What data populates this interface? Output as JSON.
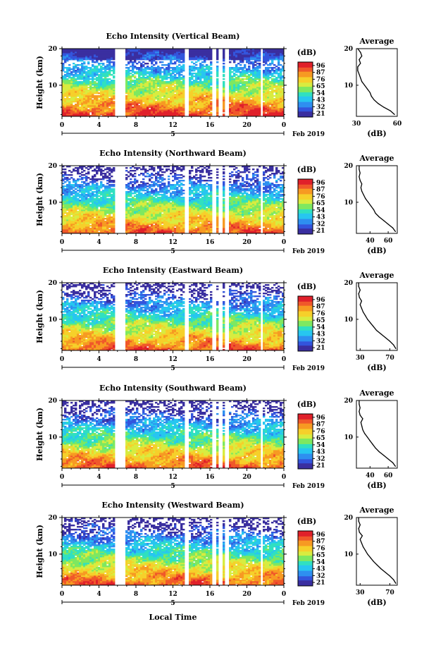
{
  "figure": {
    "x_axis_label": "Local Time",
    "date_label": "Feb 2019",
    "day_label": "5",
    "time_ticks": [
      "0",
      "4",
      "8",
      "12",
      "16",
      "20",
      "0"
    ],
    "height_ticks": [
      "20",
      "10"
    ],
    "height_axis_label": "Height (km)",
    "colorbar_unit": "(dB)",
    "average_title": "Average",
    "average_xlabel": "(dB)",
    "colormap": [
      "#3a2fa0",
      "#3355dd",
      "#2e8ff0",
      "#27c6f0",
      "#30e0c0",
      "#7ee860",
      "#d8ec40",
      "#f6d02a",
      "#f79a22",
      "#f0582a",
      "#e0202a"
    ]
  },
  "chart_data": [
    {
      "type": "heatmap",
      "title": "Echo Intensity (Vertical Beam)",
      "xlabel": "Local Time",
      "ylabel": "Height (km)",
      "x_unit": "hour",
      "xlim": [
        0,
        24
      ],
      "ylim": [
        1.5,
        20
      ],
      "colorbar": {
        "label": "(dB)",
        "ticks": [
          "96",
          "87",
          "76",
          "65",
          "54",
          "43",
          "32",
          "21"
        ]
      },
      "data_gaps_hours": [
        [
          5.8,
          6.8
        ],
        [
          13.3,
          13.8
        ],
        [
          16.3,
          16.6
        ],
        [
          17.0,
          17.3
        ],
        [
          17.7,
          18.0
        ],
        [
          21.5,
          21.8
        ]
      ],
      "profile": {
        "title": "Average",
        "xlabel": "(dB)",
        "xticks": [
          "30",
          "60"
        ],
        "xlim": [
          30,
          60
        ],
        "yticks": [
          "20",
          "10"
        ],
        "ylim": [
          1.5,
          20
        ],
        "points": [
          [
            58,
            2
          ],
          [
            55,
            3
          ],
          [
            50,
            4
          ],
          [
            46,
            5
          ],
          [
            43,
            6
          ],
          [
            41,
            7
          ],
          [
            40,
            8
          ],
          [
            38,
            9
          ],
          [
            36,
            10
          ],
          [
            34,
            11
          ],
          [
            33,
            12
          ],
          [
            32,
            13
          ],
          [
            31,
            14
          ],
          [
            31,
            15
          ],
          [
            33,
            16
          ],
          [
            32,
            17
          ],
          [
            34,
            18
          ],
          [
            33,
            19
          ],
          [
            31,
            20
          ]
        ]
      }
    },
    {
      "type": "heatmap",
      "title": "Echo Intensity (Northward Beam)",
      "xlabel": "Local Time",
      "ylabel": "Height (km)",
      "x_unit": "hour",
      "xlim": [
        0,
        24
      ],
      "ylim": [
        1.5,
        20
      ],
      "colorbar": {
        "label": "(dB)",
        "ticks": [
          "96",
          "87",
          "76",
          "65",
          "54",
          "43",
          "32",
          "21"
        ]
      },
      "data_gaps_hours": [
        [
          5.8,
          6.8
        ],
        [
          13.3,
          13.8
        ],
        [
          16.3,
          16.6
        ],
        [
          17.0,
          17.3
        ],
        [
          17.7,
          18.0
        ],
        [
          21.5,
          21.8
        ]
      ],
      "profile": {
        "title": "Average",
        "xlabel": "(dB)",
        "xticks": [
          "40",
          "60"
        ],
        "xlim": [
          25,
          70
        ],
        "yticks": [
          "20",
          "10"
        ],
        "ylim": [
          1.5,
          20
        ],
        "points": [
          [
            68,
            2
          ],
          [
            65,
            3
          ],
          [
            60,
            4
          ],
          [
            55,
            5
          ],
          [
            50,
            6
          ],
          [
            46,
            7
          ],
          [
            44,
            8
          ],
          [
            41,
            9
          ],
          [
            38,
            10
          ],
          [
            35,
            11
          ],
          [
            33,
            12
          ],
          [
            31,
            13
          ],
          [
            30,
            14
          ],
          [
            31,
            15
          ],
          [
            29,
            16
          ],
          [
            28,
            17
          ],
          [
            29,
            18
          ],
          [
            28,
            19
          ],
          [
            28,
            20
          ]
        ]
      }
    },
    {
      "type": "heatmap",
      "title": "Echo Intensity (Eastward Beam)",
      "xlabel": "Local Time",
      "ylabel": "Height (km)",
      "x_unit": "hour",
      "xlim": [
        0,
        24
      ],
      "ylim": [
        1.5,
        20
      ],
      "colorbar": {
        "label": "(dB)",
        "ticks": [
          "96",
          "87",
          "76",
          "65",
          "54",
          "43",
          "32",
          "21"
        ]
      },
      "data_gaps_hours": [
        [
          5.8,
          6.8
        ],
        [
          13.3,
          13.8
        ],
        [
          16.3,
          16.6
        ],
        [
          17.0,
          17.3
        ],
        [
          17.7,
          18.0
        ],
        [
          21.5,
          21.8
        ]
      ],
      "profile": {
        "title": "Average",
        "xlabel": "(dB)",
        "xticks": [
          "30",
          "70"
        ],
        "xlim": [
          25,
          80
        ],
        "yticks": [
          "20",
          "10"
        ],
        "ylim": [
          1.5,
          20
        ],
        "points": [
          [
            78,
            2
          ],
          [
            75,
            3
          ],
          [
            70,
            4
          ],
          [
            64,
            5
          ],
          [
            58,
            6
          ],
          [
            52,
            7
          ],
          [
            48,
            8
          ],
          [
            44,
            9
          ],
          [
            40,
            10
          ],
          [
            37,
            11
          ],
          [
            34,
            12
          ],
          [
            32,
            13
          ],
          [
            30,
            14
          ],
          [
            32,
            15
          ],
          [
            29,
            16
          ],
          [
            28,
            17
          ],
          [
            30,
            18
          ],
          [
            28,
            19
          ],
          [
            28,
            20
          ]
        ]
      }
    },
    {
      "type": "heatmap",
      "title": "Echo Intensity (Southward Beam)",
      "xlabel": "Local Time",
      "ylabel": "Height (km)",
      "x_unit": "hour",
      "xlim": [
        0,
        24
      ],
      "ylim": [
        1.5,
        20
      ],
      "colorbar": {
        "label": "(dB)",
        "ticks": [
          "96",
          "87",
          "76",
          "65",
          "54",
          "43",
          "32",
          "21"
        ]
      },
      "data_gaps_hours": [
        [
          5.8,
          6.8
        ],
        [
          13.3,
          13.8
        ],
        [
          16.3,
          16.6
        ],
        [
          17.0,
          17.3
        ],
        [
          17.7,
          18.0
        ],
        [
          21.5,
          21.8
        ]
      ],
      "profile": {
        "title": "Average",
        "xlabel": "(dB)",
        "xticks": [
          "40",
          "60"
        ],
        "xlim": [
          25,
          70
        ],
        "yticks": [
          "20",
          "10"
        ],
        "ylim": [
          1.5,
          20
        ],
        "points": [
          [
            68,
            2
          ],
          [
            65,
            3
          ],
          [
            60,
            4
          ],
          [
            55,
            5
          ],
          [
            50,
            6
          ],
          [
            46,
            7
          ],
          [
            43,
            8
          ],
          [
            40,
            9
          ],
          [
            37,
            10
          ],
          [
            34,
            11
          ],
          [
            32,
            12
          ],
          [
            31,
            13
          ],
          [
            30,
            14
          ],
          [
            32,
            15
          ],
          [
            29,
            16
          ],
          [
            28,
            17
          ],
          [
            29,
            18
          ],
          [
            28,
            19
          ],
          [
            28,
            20
          ]
        ]
      }
    },
    {
      "type": "heatmap",
      "title": "Echo Intensity (Westward Beam)",
      "xlabel": "Local Time",
      "ylabel": "Height (km)",
      "x_unit": "hour",
      "xlim": [
        0,
        24
      ],
      "ylim": [
        1.5,
        20
      ],
      "colorbar": {
        "label": "(dB)",
        "ticks": [
          "96",
          "87",
          "76",
          "65",
          "54",
          "43",
          "32",
          "21"
        ]
      },
      "data_gaps_hours": [
        [
          5.8,
          6.8
        ],
        [
          13.3,
          13.8
        ],
        [
          16.3,
          16.6
        ],
        [
          17.0,
          17.3
        ],
        [
          17.7,
          18.0
        ],
        [
          21.5,
          21.8
        ]
      ],
      "profile": {
        "title": "Average",
        "xlabel": "(dB)",
        "xticks": [
          "30",
          "70"
        ],
        "xlim": [
          25,
          80
        ],
        "yticks": [
          "20",
          "10"
        ],
        "ylim": [
          1.5,
          20
        ],
        "points": [
          [
            78,
            2
          ],
          [
            75,
            3
          ],
          [
            70,
            4
          ],
          [
            64,
            5
          ],
          [
            58,
            6
          ],
          [
            53,
            7
          ],
          [
            48,
            8
          ],
          [
            44,
            9
          ],
          [
            40,
            10
          ],
          [
            37,
            11
          ],
          [
            34,
            12
          ],
          [
            32,
            13
          ],
          [
            30,
            14
          ],
          [
            33,
            15
          ],
          [
            29,
            16
          ],
          [
            28,
            17
          ],
          [
            30,
            18
          ],
          [
            28,
            19
          ],
          [
            28,
            20
          ]
        ]
      }
    }
  ]
}
